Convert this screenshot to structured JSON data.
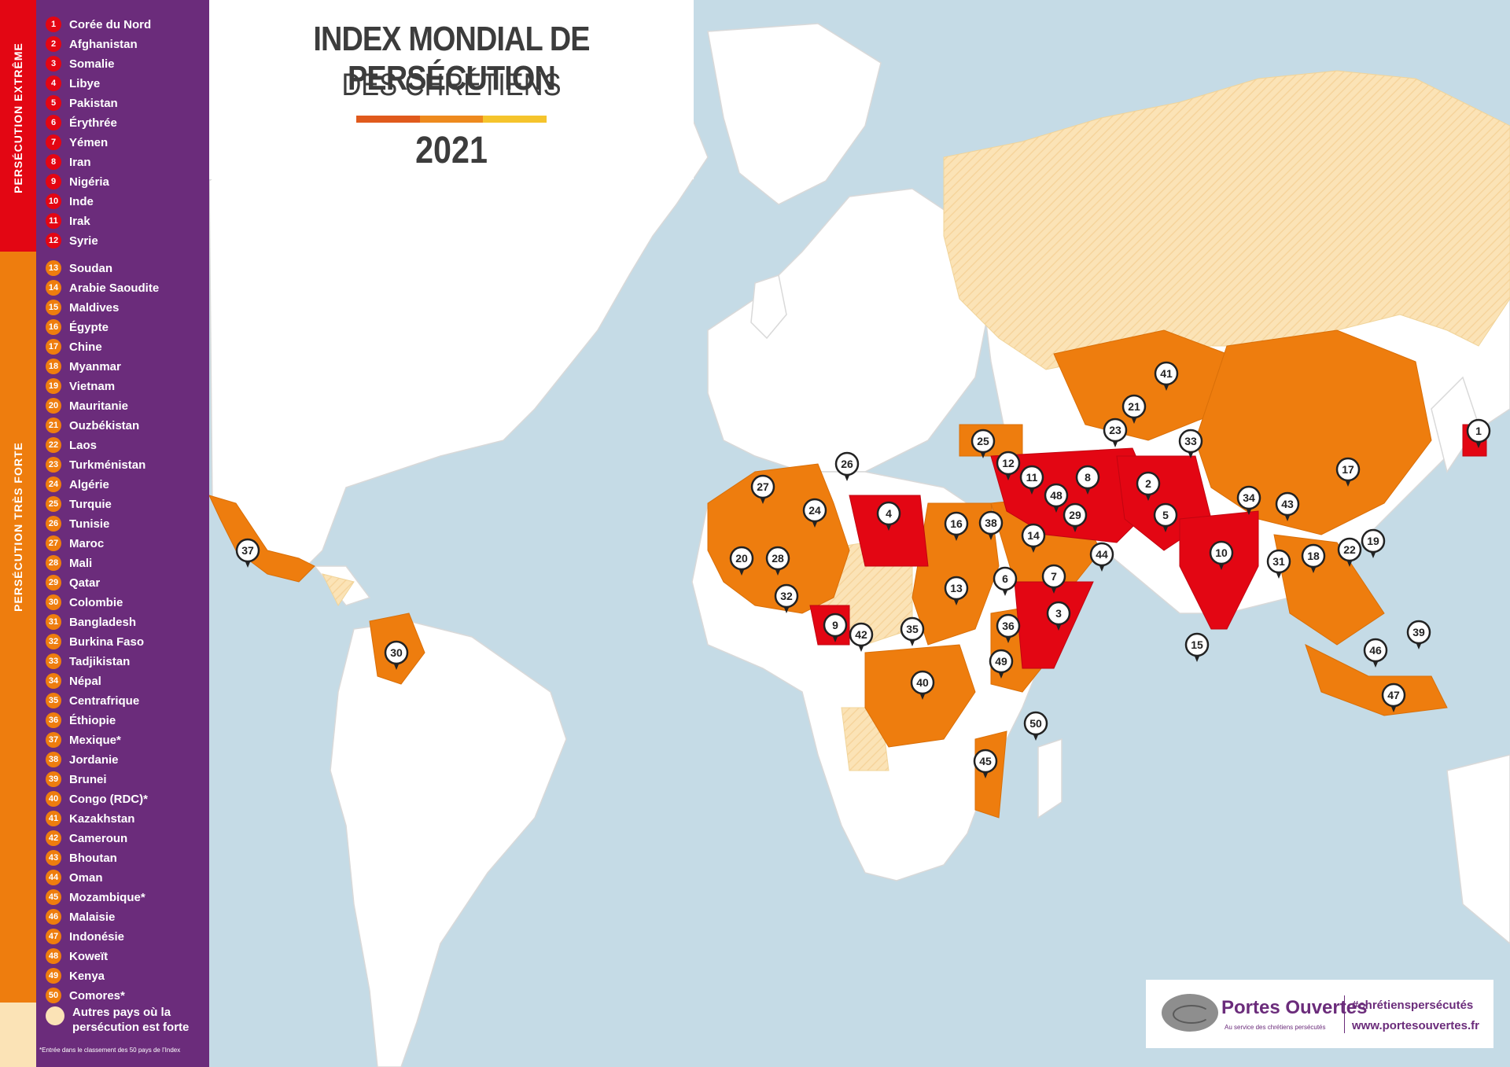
{
  "title": {
    "line1": "INDEX MONDIAL DE PERSÉCUTION",
    "line2": "DES CHRÉTIENS",
    "year": "2021",
    "bar_colors": [
      "#e05a1c",
      "#ee8a1e",
      "#f5c42c"
    ]
  },
  "categories": {
    "extreme": {
      "label": "PERSÉCUTION EXTRÊME",
      "color": "#e30613"
    },
    "very_high": {
      "label": "PERSÉCUTION TRÈS FORTE",
      "color": "#ee7d0e"
    },
    "high": {
      "label": "Autres pays où la persécution est forte",
      "color": "#fbe3b6"
    }
  },
  "colors": {
    "sea": "#c5dbe6",
    "land": "#ffffff",
    "border": "#d9d9d9",
    "legend_bg": "#6b2c7b"
  },
  "countries": [
    {
      "rank": "1",
      "name": "Corée du Nord",
      "cat": "extreme"
    },
    {
      "rank": "2",
      "name": "Afghanistan",
      "cat": "extreme"
    },
    {
      "rank": "3",
      "name": "Somalie",
      "cat": "extreme"
    },
    {
      "rank": "4",
      "name": "Libye",
      "cat": "extreme"
    },
    {
      "rank": "5",
      "name": "Pakistan",
      "cat": "extreme"
    },
    {
      "rank": "6",
      "name": "Érythrée",
      "cat": "extreme"
    },
    {
      "rank": "7",
      "name": "Yémen",
      "cat": "extreme"
    },
    {
      "rank": "8",
      "name": "Iran",
      "cat": "extreme"
    },
    {
      "rank": "9",
      "name": "Nigéria",
      "cat": "extreme"
    },
    {
      "rank": "10",
      "name": "Inde",
      "cat": "extreme"
    },
    {
      "rank": "11",
      "name": "Irak",
      "cat": "extreme"
    },
    {
      "rank": "12",
      "name": "Syrie",
      "cat": "extreme"
    },
    {
      "rank": "13",
      "name": "Soudan",
      "cat": "very_high"
    },
    {
      "rank": "14",
      "name": "Arabie Saoudite",
      "cat": "very_high"
    },
    {
      "rank": "15",
      "name": "Maldives",
      "cat": "very_high"
    },
    {
      "rank": "16",
      "name": "Égypte",
      "cat": "very_high"
    },
    {
      "rank": "17",
      "name": "Chine",
      "cat": "very_high"
    },
    {
      "rank": "18",
      "name": "Myanmar",
      "cat": "very_high"
    },
    {
      "rank": "19",
      "name": "Vietnam",
      "cat": "very_high"
    },
    {
      "rank": "20",
      "name": "Mauritanie",
      "cat": "very_high"
    },
    {
      "rank": "21",
      "name": "Ouzbékistan",
      "cat": "very_high"
    },
    {
      "rank": "22",
      "name": "Laos",
      "cat": "very_high"
    },
    {
      "rank": "23",
      "name": "Turkménistan",
      "cat": "very_high"
    },
    {
      "rank": "24",
      "name": "Algérie",
      "cat": "very_high"
    },
    {
      "rank": "25",
      "name": "Turquie",
      "cat": "very_high"
    },
    {
      "rank": "26",
      "name": "Tunisie",
      "cat": "very_high"
    },
    {
      "rank": "27",
      "name": "Maroc",
      "cat": "very_high"
    },
    {
      "rank": "28",
      "name": "Mali",
      "cat": "very_high"
    },
    {
      "rank": "29",
      "name": "Qatar",
      "cat": "very_high"
    },
    {
      "rank": "30",
      "name": "Colombie",
      "cat": "very_high"
    },
    {
      "rank": "31",
      "name": "Bangladesh",
      "cat": "very_high"
    },
    {
      "rank": "32",
      "name": "Burkina Faso",
      "cat": "very_high"
    },
    {
      "rank": "33",
      "name": "Tadjikistan",
      "cat": "very_high"
    },
    {
      "rank": "34",
      "name": "Népal",
      "cat": "very_high"
    },
    {
      "rank": "35",
      "name": "Centrafrique",
      "cat": "very_high"
    },
    {
      "rank": "36",
      "name": "Éthiopie",
      "cat": "very_high"
    },
    {
      "rank": "37",
      "name": "Mexique*",
      "cat": "very_high"
    },
    {
      "rank": "38",
      "name": "Jordanie",
      "cat": "very_high"
    },
    {
      "rank": "39",
      "name": "Brunei",
      "cat": "very_high"
    },
    {
      "rank": "40",
      "name": "Congo (RDC)*",
      "cat": "very_high"
    },
    {
      "rank": "41",
      "name": "Kazakhstan",
      "cat": "very_high"
    },
    {
      "rank": "42",
      "name": "Cameroun",
      "cat": "very_high"
    },
    {
      "rank": "43",
      "name": "Bhoutan",
      "cat": "very_high"
    },
    {
      "rank": "44",
      "name": "Oman",
      "cat": "very_high"
    },
    {
      "rank": "45",
      "name": "Mozambique*",
      "cat": "very_high"
    },
    {
      "rank": "46",
      "name": "Malaisie",
      "cat": "very_high"
    },
    {
      "rank": "47",
      "name": "Indonésie",
      "cat": "very_high"
    },
    {
      "rank": "48",
      "name": "Koweït",
      "cat": "very_high"
    },
    {
      "rank": "49",
      "name": "Kenya",
      "cat": "very_high"
    },
    {
      "rank": "50",
      "name": "Comores*",
      "cat": "very_high"
    }
  ],
  "footnote": "*Entrée dans le classement des 50 pays de l’Index",
  "logo": {
    "brand": "Portes Ouvertes",
    "tagline": "Au service des chrétiens persécutés",
    "hashtag": "#chrétienspersécutés",
    "website": "www.portesouvertes.fr"
  }
}
